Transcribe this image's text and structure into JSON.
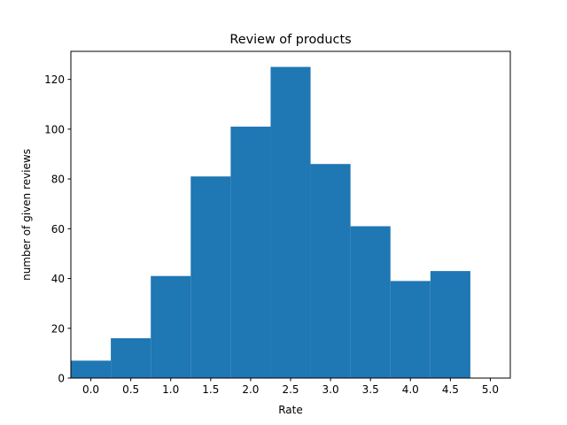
{
  "chart_data": {
    "type": "bar",
    "title": "Review of products",
    "xlabel": "Rate",
    "ylabel": "number of given reviews",
    "bin_width": 0.5,
    "bins": [
      {
        "center": 0.0,
        "value": 7
      },
      {
        "center": 0.5,
        "value": 16
      },
      {
        "center": 1.0,
        "value": 41
      },
      {
        "center": 1.5,
        "value": 81
      },
      {
        "center": 2.0,
        "value": 101
      },
      {
        "center": 2.5,
        "value": 125
      },
      {
        "center": 3.0,
        "value": 86
      },
      {
        "center": 3.5,
        "value": 61
      },
      {
        "center": 4.0,
        "value": 39
      },
      {
        "center": 4.5,
        "value": 43
      }
    ],
    "xlim": [
      -0.25,
      5.25
    ],
    "ylim": [
      0,
      131.25
    ],
    "xticks": [
      "0.0",
      "0.5",
      "1.0",
      "1.5",
      "2.0",
      "2.5",
      "3.0",
      "3.5",
      "4.0",
      "4.5",
      "5.0"
    ],
    "yticks": [
      "0",
      "20",
      "40",
      "60",
      "80",
      "100",
      "120"
    ],
    "bar_color": "#1f77b4",
    "grid": false,
    "legend": "none"
  }
}
